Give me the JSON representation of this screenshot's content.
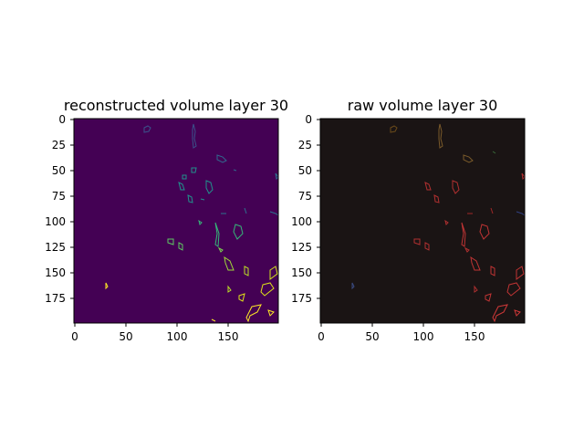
{
  "panels": [
    {
      "title": "reconstructed volume layer 30",
      "x_ticks": [
        "0",
        "50",
        "100",
        "150"
      ],
      "y_ticks": [
        "0",
        "25",
        "50",
        "75",
        "100",
        "125",
        "150",
        "175"
      ],
      "background": "#440154"
    },
    {
      "title": "raw volume layer 30",
      "x_ticks": [
        "0",
        "50",
        "100",
        "150"
      ],
      "y_ticks": [
        "0",
        "25",
        "50",
        "75",
        "100",
        "125",
        "150",
        "175"
      ],
      "background": "#1a1414"
    }
  ]
}
